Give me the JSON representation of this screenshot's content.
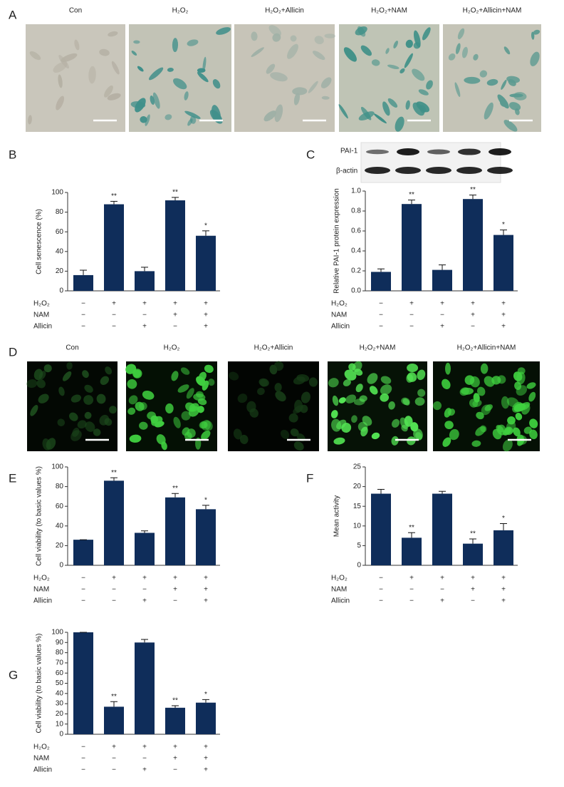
{
  "figure": {
    "panel_letters": [
      "A",
      "B",
      "C",
      "D",
      "E",
      "F",
      "G"
    ],
    "image_rows": [
      {
        "captions": [
          "Con",
          "H₂O₂",
          "H₂O₂+Allicin",
          "H₂O₂+NAM",
          "H₂O₂+Allicin+NAM"
        ]
      },
      {
        "captions": [
          "Con",
          "H₂O₂",
          "H₂O₂+Allicin",
          "H₂O₂+NAM",
          "H₂O₂+Allicin+NAM"
        ]
      }
    ]
  },
  "chart_data": [
    {
      "type": "bar",
      "y_label": "Cell senescence (%)",
      "categories": [
        null,
        null,
        null,
        null,
        null
      ],
      "values": [
        16,
        88,
        20,
        92,
        56
      ],
      "errors": [
        5,
        3,
        4,
        3,
        5
      ],
      "annotations": [
        null,
        "**",
        null,
        "**",
        "*"
      ],
      "ylim": [
        0,
        100
      ],
      "yticks": [
        0,
        20,
        40,
        60,
        80,
        100
      ],
      "color": "#0f2d5a",
      "treatment_table": [
        {
          "name": "H₂O₂",
          "signs": [
            "−",
            "+",
            "+",
            "+",
            "+"
          ]
        },
        {
          "name": "NAM",
          "signs": [
            "−",
            "−",
            "−",
            "+",
            "+"
          ]
        },
        {
          "name": "Allicin",
          "signs": [
            "−",
            "−",
            "+",
            "−",
            "+"
          ]
        }
      ]
    },
    {
      "type": "bar",
      "y_label": "Relative PAI-1 protein expression",
      "categories": [
        null,
        null,
        null,
        null,
        null
      ],
      "blot_labels": [
        "PAI-1",
        "β-actin"
      ],
      "values": [
        0.19,
        0.87,
        0.21,
        0.92,
        0.56
      ],
      "errors": [
        0.03,
        0.04,
        0.05,
        0.04,
        0.05
      ],
      "annotations": [
        null,
        "**",
        null,
        "**",
        "*"
      ],
      "ylim": [
        0,
        1
      ],
      "yticks": [
        {
          "value": 0,
          "label": "0.0"
        },
        0.2,
        0.4,
        0.6,
        0.8,
        {
          "value": 1,
          "label": "1.0"
        }
      ],
      "color": "#0f2d5a",
      "treatment_table": [
        {
          "name": "H₂O₂",
          "signs": [
            "−",
            "+",
            "+",
            "+",
            "+"
          ]
        },
        {
          "name": "NAM",
          "signs": [
            "−",
            "−",
            "−",
            "+",
            "+"
          ]
        },
        {
          "name": "Allicin",
          "signs": [
            "−",
            "−",
            "+",
            "−",
            "+"
          ]
        }
      ]
    },
    {
      "type": "bar",
      "y_label": "Cell viability (to basic values %)",
      "categories": [
        null,
        null,
        null,
        null,
        null
      ],
      "values": [
        26,
        86,
        33,
        69,
        57
      ],
      "errors": [
        0,
        3,
        2,
        4,
        4
      ],
      "annotations": [
        null,
        "**",
        null,
        "**",
        "*"
      ],
      "ylim": [
        0,
        100
      ],
      "yticks": [
        0,
        20,
        40,
        60,
        80,
        100
      ],
      "color": "#0f2d5a",
      "treatment_table": [
        {
          "name": "H₂O₂",
          "signs": [
            "−",
            "+",
            "+",
            "+",
            "+"
          ]
        },
        {
          "name": "NAM",
          "signs": [
            "−",
            "−",
            "−",
            "+",
            "+"
          ]
        },
        {
          "name": "Allicin",
          "signs": [
            "−",
            "−",
            "+",
            "−",
            "+"
          ]
        }
      ]
    },
    {
      "type": "bar",
      "y_label": "Mean activity",
      "categories": [
        null,
        null,
        null,
        null,
        null
      ],
      "values": [
        18.2,
        7,
        18.2,
        5.5,
        8.9
      ],
      "errors": [
        1.1,
        1.3,
        0.6,
        1.2,
        1.7
      ],
      "annotations": [
        null,
        "**",
        null,
        "**",
        "*"
      ],
      "ylim": [
        0,
        25
      ],
      "yticks": [
        0,
        5,
        10,
        15,
        20,
        25
      ],
      "color": "#0f2d5a",
      "treatment_table": [
        {
          "name": "H₂O₂",
          "signs": [
            "−",
            "+",
            "+",
            "+",
            "+"
          ]
        },
        {
          "name": "NAM",
          "signs": [
            "−",
            "−",
            "−",
            "+",
            "+"
          ]
        },
        {
          "name": "Allicin",
          "signs": [
            "−",
            "−",
            "+",
            "−",
            "+"
          ]
        }
      ]
    },
    {
      "type": "bar",
      "y_label": "Cell viability (to basic values %)",
      "categories": [
        null,
        null,
        null,
        null,
        null
      ],
      "values": [
        100,
        27,
        90,
        26,
        31
      ],
      "errors": [
        0,
        5,
        3,
        2,
        3
      ],
      "annotations": [
        null,
        "**",
        null,
        "**",
        "*"
      ],
      "ylim": [
        0,
        100
      ],
      "yticks": [
        0,
        10,
        20,
        30,
        40,
        50,
        60,
        70,
        80,
        90,
        100
      ],
      "color": "#0f2d5a",
      "treatment_table": [
        {
          "name": "H₂O₂",
          "signs": [
            "−",
            "+",
            "+",
            "+",
            "+"
          ]
        },
        {
          "name": "NAM",
          "signs": [
            "−",
            "−",
            "−",
            "+",
            "+"
          ]
        },
        {
          "name": "Allicin",
          "signs": [
            "−",
            "−",
            "+",
            "−",
            "+"
          ]
        }
      ]
    }
  ]
}
